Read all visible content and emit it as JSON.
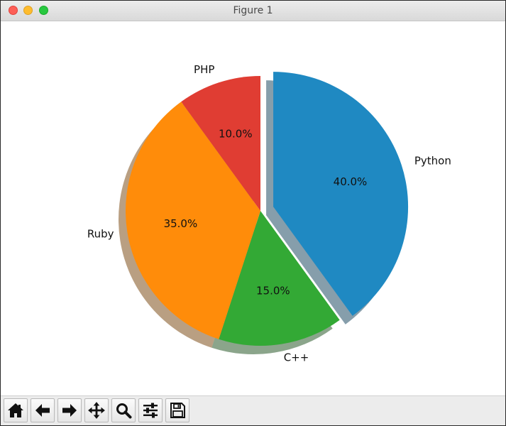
{
  "window": {
    "title": "Figure 1"
  },
  "toolbar": {
    "buttons": [
      {
        "icon": "home-icon",
        "tooltip": "Home"
      },
      {
        "icon": "arrow-left-icon",
        "tooltip": "Back"
      },
      {
        "icon": "arrow-right-icon",
        "tooltip": "Forward"
      },
      {
        "icon": "move-icon",
        "tooltip": "Pan"
      },
      {
        "icon": "magnifier-icon",
        "tooltip": "Zoom"
      },
      {
        "icon": "sliders-icon",
        "tooltip": "Subplots"
      },
      {
        "icon": "floppy-disk-icon",
        "tooltip": "Save"
      }
    ]
  },
  "chart_data": {
    "type": "pie",
    "labels": [
      "Python",
      "C++",
      "Ruby",
      "PHP"
    ],
    "values": [
      40,
      15,
      35,
      10
    ],
    "percent_labels": [
      "40.0%",
      "15.0%",
      "35.0%",
      "10.0%"
    ],
    "colors": [
      "#1f89c2",
      "#33a935",
      "#ff8c0a",
      "#e03d33"
    ],
    "explode": [
      0.1,
      0,
      0,
      0
    ],
    "shadow": true,
    "start_angle": 90,
    "counterclock": false,
    "title": "",
    "legend": "none"
  }
}
